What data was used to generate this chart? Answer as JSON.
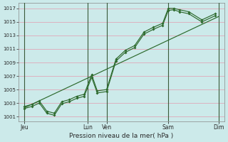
{
  "background_color": "#cceaea",
  "grid_color": "#e0a8b8",
  "line_color": "#2d6a2d",
  "xlabel": "Pression niveau de la mer( hPa )",
  "yticks": [
    1001,
    1003,
    1005,
    1007,
    1009,
    1011,
    1013,
    1015,
    1017
  ],
  "ylim": [
    1000.3,
    1017.8
  ],
  "xlim_days": [
    0,
    5.5
  ],
  "xtick_positions": [
    0.15,
    1.85,
    2.35,
    4.0,
    5.35
  ],
  "xtick_labels": [
    "Jeu",
    "Lun",
    "Ven",
    "Sam",
    "Dim"
  ],
  "vline_positions": [
    0.15,
    1.85,
    2.35,
    4.0,
    5.35
  ],
  "series1_x": [
    0.15,
    0.35,
    0.55,
    0.75,
    0.95,
    1.15,
    1.35,
    1.55,
    1.75,
    1.95,
    2.1,
    2.35,
    2.6,
    2.85,
    3.1,
    3.35,
    3.6,
    3.85,
    4.0,
    4.15,
    4.3,
    4.55,
    4.9,
    5.25
  ],
  "series1_y": [
    1002.5,
    1002.8,
    1003.3,
    1001.8,
    1001.5,
    1003.2,
    1003.5,
    1004.0,
    1004.3,
    1007.2,
    1004.8,
    1005.0,
    1009.5,
    1010.8,
    1011.5,
    1013.5,
    1014.2,
    1014.8,
    1017.0,
    1017.0,
    1016.8,
    1016.5,
    1015.3,
    1016.2
  ],
  "series2_x": [
    0.15,
    0.35,
    0.55,
    0.75,
    0.95,
    1.15,
    1.35,
    1.55,
    1.75,
    1.95,
    2.1,
    2.35,
    2.6,
    2.85,
    3.1,
    3.35,
    3.6,
    3.85,
    4.0,
    4.15,
    4.3,
    4.55,
    4.9,
    5.25
  ],
  "series2_y": [
    1002.2,
    1002.5,
    1003.0,
    1001.5,
    1001.2,
    1002.9,
    1003.2,
    1003.7,
    1004.0,
    1006.8,
    1004.5,
    1004.7,
    1009.2,
    1010.5,
    1011.2,
    1013.2,
    1013.9,
    1014.5,
    1016.7,
    1016.8,
    1016.5,
    1016.2,
    1015.0,
    1015.9
  ],
  "trend_x": [
    0.15,
    5.35
  ],
  "trend_y": [
    1002.3,
    1015.8
  ],
  "vline_color": "#3a5a3a"
}
